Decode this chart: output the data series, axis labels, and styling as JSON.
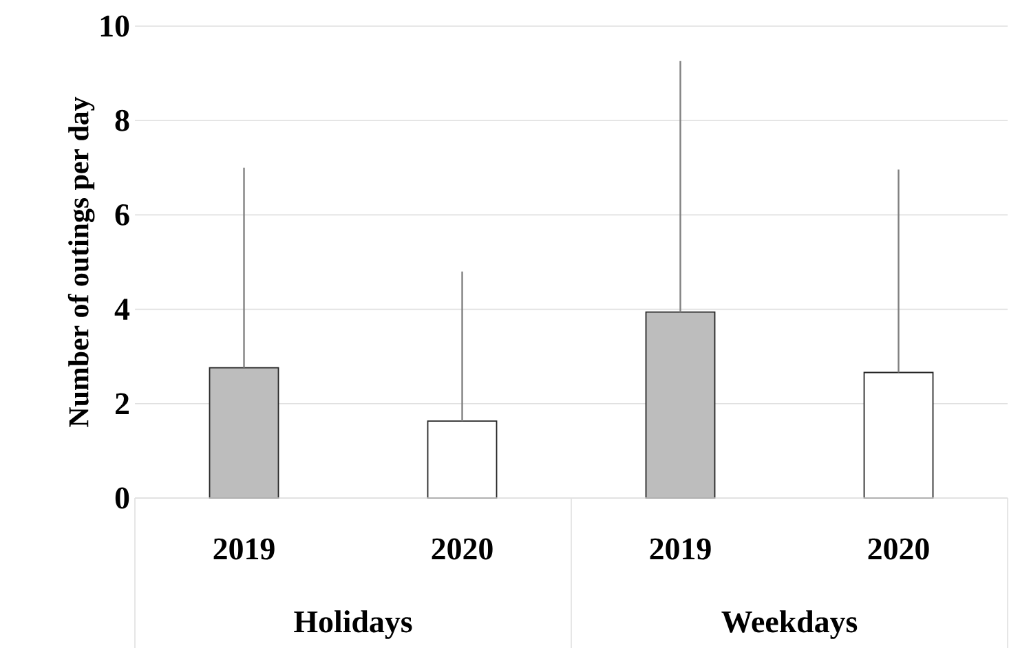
{
  "chart_data": {
    "type": "bar",
    "ylabel": "Number of outings per day",
    "categories": [
      "2019",
      "2020",
      "2019",
      "2020"
    ],
    "values": [
      2.76,
      1.63,
      3.94,
      2.66
    ],
    "colors": [
      "#bdbdbd",
      "#ffffff",
      "#bdbdbd",
      "#ffffff"
    ],
    "errors": [
      [
        2.76,
        7.0
      ],
      [
        1.63,
        4.8
      ],
      [
        3.94,
        9.26
      ],
      [
        2.66,
        6.96
      ]
    ],
    "annotations": [
      "Holidays",
      "Weekdays"
    ],
    "ylim": [
      0,
      10
    ],
    "yticks": [
      0,
      2,
      4,
      6,
      8,
      10
    ],
    "grid": "y"
  }
}
